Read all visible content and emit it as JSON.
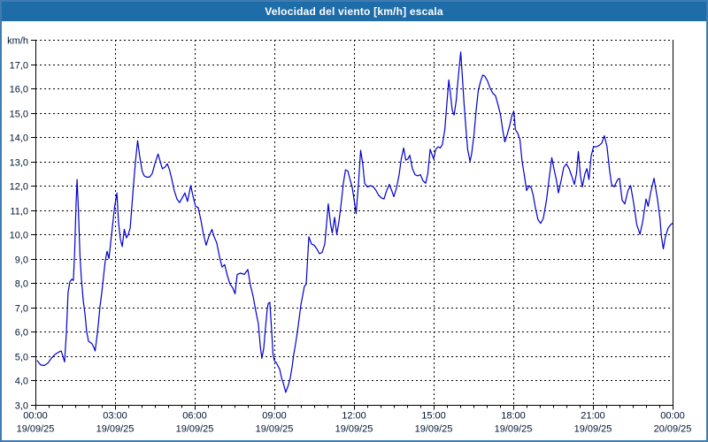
{
  "window": {
    "title": "Velocidad del viento [km/h] escala"
  },
  "colors": {
    "titlebar_bg": "#1E6CA8",
    "titlebar_text": "#FFFFFF",
    "window_border": "#3E7CB1",
    "plot_bg": "#FFFFFF",
    "grid": "#000000",
    "axis_text": "#001433",
    "line": "#0000CC"
  },
  "chart_data": {
    "type": "line",
    "title": "Velocidad del viento [km/h] escala",
    "unit_label": "km/h",
    "xlabel": "",
    "ylabel": "km/h",
    "ylim": [
      3,
      18
    ],
    "y_tick_step": 1,
    "y_tick_labels": [
      "3,0",
      "4,0",
      "5,0",
      "6,0",
      "7,0",
      "8,0",
      "9,0",
      "10,0",
      "11,0",
      "12,0",
      "13,0",
      "14,0",
      "15,0",
      "16,0",
      "17,0"
    ],
    "x_hours_range": [
      0,
      24
    ],
    "x_minor_tick_hours": 0.5,
    "x_major_ticks": [
      {
        "hour": 0,
        "time": "00:00",
        "date": "19/09/25"
      },
      {
        "hour": 3,
        "time": "03:00",
        "date": "19/09/25"
      },
      {
        "hour": 6,
        "time": "06:00",
        "date": "19/09/25"
      },
      {
        "hour": 9,
        "time": "09:00",
        "date": "19/09/25"
      },
      {
        "hour": 12,
        "time": "12:00",
        "date": "19/09/25"
      },
      {
        "hour": 15,
        "time": "15:00",
        "date": "19/09/25"
      },
      {
        "hour": 18,
        "time": "18:00",
        "date": "19/09/25"
      },
      {
        "hour": 21,
        "time": "21:00",
        "date": "19/09/25"
      },
      {
        "hour": 24,
        "time": "00:00",
        "date": "20/09/25"
      }
    ],
    "grid": "dashed",
    "legend": "none",
    "line_color": "#0000CC",
    "grid_color": "#000000",
    "series": [
      {
        "name": "Velocidad del viento",
        "points": [
          [
            0.07,
            4.8
          ],
          [
            0.2,
            4.62
          ],
          [
            0.33,
            4.6
          ],
          [
            0.47,
            4.7
          ],
          [
            0.6,
            4.9
          ],
          [
            0.73,
            5.05
          ],
          [
            0.87,
            5.15
          ],
          [
            0.97,
            5.2
          ],
          [
            1.03,
            5.0
          ],
          [
            1.1,
            4.75
          ],
          [
            1.17,
            6.0
          ],
          [
            1.23,
            7.6
          ],
          [
            1.3,
            8.05
          ],
          [
            1.37,
            8.15
          ],
          [
            1.43,
            8.1
          ],
          [
            1.48,
            9.3
          ],
          [
            1.53,
            11.2
          ],
          [
            1.57,
            12.25
          ],
          [
            1.62,
            11.0
          ],
          [
            1.68,
            9.1
          ],
          [
            1.73,
            8.2
          ],
          [
            1.8,
            7.3
          ],
          [
            1.87,
            6.7
          ],
          [
            1.93,
            6.0
          ],
          [
            2.0,
            5.6
          ],
          [
            2.07,
            5.55
          ],
          [
            2.13,
            5.5
          ],
          [
            2.2,
            5.35
          ],
          [
            2.25,
            5.2
          ],
          [
            2.32,
            5.8
          ],
          [
            2.38,
            6.4
          ],
          [
            2.43,
            7.0
          ],
          [
            2.5,
            7.6
          ],
          [
            2.57,
            8.3
          ],
          [
            2.63,
            8.9
          ],
          [
            2.7,
            9.3
          ],
          [
            2.77,
            9.0
          ],
          [
            2.83,
            9.6
          ],
          [
            2.9,
            10.3
          ],
          [
            2.98,
            11.1
          ],
          [
            3.07,
            11.7
          ],
          [
            3.13,
            10.5
          ],
          [
            3.2,
            9.8
          ],
          [
            3.27,
            9.5
          ],
          [
            3.35,
            10.2
          ],
          [
            3.43,
            9.85
          ],
          [
            3.5,
            10.0
          ],
          [
            3.57,
            10.25
          ],
          [
            3.63,
            11.1
          ],
          [
            3.7,
            12.1
          ],
          [
            3.77,
            13.0
          ],
          [
            3.85,
            13.85
          ],
          [
            3.93,
            13.2
          ],
          [
            4.02,
            12.6
          ],
          [
            4.1,
            12.4
          ],
          [
            4.2,
            12.35
          ],
          [
            4.3,
            12.35
          ],
          [
            4.4,
            12.5
          ],
          [
            4.5,
            12.9
          ],
          [
            4.62,
            13.3
          ],
          [
            4.7,
            13.0
          ],
          [
            4.78,
            12.7
          ],
          [
            4.87,
            12.75
          ],
          [
            4.97,
            12.9
          ],
          [
            5.05,
            12.65
          ],
          [
            5.13,
            12.3
          ],
          [
            5.23,
            11.8
          ],
          [
            5.33,
            11.45
          ],
          [
            5.43,
            11.3
          ],
          [
            5.53,
            11.5
          ],
          [
            5.63,
            11.7
          ],
          [
            5.73,
            11.35
          ],
          [
            5.85,
            12.0
          ],
          [
            5.93,
            11.6
          ],
          [
            6.03,
            11.15
          ],
          [
            6.13,
            11.1
          ],
          [
            6.23,
            10.6
          ],
          [
            6.33,
            10.0
          ],
          [
            6.43,
            9.55
          ],
          [
            6.53,
            9.9
          ],
          [
            6.65,
            10.2
          ],
          [
            6.73,
            9.9
          ],
          [
            6.83,
            9.65
          ],
          [
            6.93,
            9.1
          ],
          [
            7.03,
            8.65
          ],
          [
            7.13,
            8.75
          ],
          [
            7.23,
            8.3
          ],
          [
            7.33,
            7.95
          ],
          [
            7.43,
            7.8
          ],
          [
            7.52,
            7.55
          ],
          [
            7.6,
            8.35
          ],
          [
            7.73,
            8.4
          ],
          [
            7.87,
            8.35
          ],
          [
            8.0,
            8.55
          ],
          [
            8.1,
            7.9
          ],
          [
            8.2,
            7.45
          ],
          [
            8.3,
            6.85
          ],
          [
            8.4,
            6.3
          ],
          [
            8.47,
            5.4
          ],
          [
            8.53,
            4.9
          ],
          [
            8.6,
            5.3
          ],
          [
            8.67,
            6.2
          ],
          [
            8.73,
            6.9
          ],
          [
            8.77,
            7.15
          ],
          [
            8.83,
            7.2
          ],
          [
            8.9,
            6.0
          ],
          [
            8.95,
            5.05
          ],
          [
            9.0,
            4.8
          ],
          [
            9.07,
            4.72
          ],
          [
            9.13,
            4.6
          ],
          [
            9.2,
            4.45
          ],
          [
            9.27,
            4.1
          ],
          [
            9.33,
            3.9
          ],
          [
            9.43,
            3.5
          ],
          [
            9.53,
            3.8
          ],
          [
            9.6,
            4.1
          ],
          [
            9.67,
            4.55
          ],
          [
            9.73,
            5.05
          ],
          [
            9.8,
            5.5
          ],
          [
            9.87,
            6.0
          ],
          [
            9.93,
            6.5
          ],
          [
            10.0,
            7.1
          ],
          [
            10.07,
            7.5
          ],
          [
            10.13,
            7.85
          ],
          [
            10.2,
            7.95
          ],
          [
            10.3,
            9.9
          ],
          [
            10.4,
            9.6
          ],
          [
            10.5,
            9.55
          ],
          [
            10.6,
            9.4
          ],
          [
            10.7,
            9.2
          ],
          [
            10.8,
            9.25
          ],
          [
            10.9,
            9.6
          ],
          [
            10.98,
            10.6
          ],
          [
            11.03,
            11.25
          ],
          [
            11.12,
            10.4
          ],
          [
            11.18,
            10.05
          ],
          [
            11.27,
            10.7
          ],
          [
            11.35,
            10.0
          ],
          [
            11.43,
            10.5
          ],
          [
            11.52,
            11.3
          ],
          [
            11.6,
            12.1
          ],
          [
            11.68,
            12.65
          ],
          [
            11.77,
            12.6
          ],
          [
            11.85,
            12.25
          ],
          [
            11.93,
            11.95
          ],
          [
            12.02,
            11.3
          ],
          [
            12.08,
            10.85
          ],
          [
            12.17,
            12.1
          ],
          [
            12.25,
            13.45
          ],
          [
            12.33,
            12.9
          ],
          [
            12.4,
            12.1
          ],
          [
            12.5,
            11.95
          ],
          [
            12.63,
            12.0
          ],
          [
            12.73,
            11.95
          ],
          [
            12.83,
            11.8
          ],
          [
            12.93,
            11.6
          ],
          [
            13.03,
            11.5
          ],
          [
            13.13,
            11.45
          ],
          [
            13.23,
            11.8
          ],
          [
            13.33,
            12.05
          ],
          [
            13.42,
            11.8
          ],
          [
            13.5,
            11.55
          ],
          [
            13.6,
            11.9
          ],
          [
            13.7,
            12.45
          ],
          [
            13.78,
            13.1
          ],
          [
            13.87,
            13.55
          ],
          [
            13.95,
            13.05
          ],
          [
            14.03,
            13.1
          ],
          [
            14.1,
            13.25
          ],
          [
            14.2,
            12.7
          ],
          [
            14.3,
            12.45
          ],
          [
            14.4,
            12.4
          ],
          [
            14.5,
            12.45
          ],
          [
            14.6,
            12.2
          ],
          [
            14.7,
            12.1
          ],
          [
            14.78,
            12.5
          ],
          [
            14.87,
            13.5
          ],
          [
            14.93,
            13.3
          ],
          [
            15.0,
            13.1
          ],
          [
            15.08,
            13.5
          ],
          [
            15.17,
            13.6
          ],
          [
            15.25,
            13.55
          ],
          [
            15.33,
            13.7
          ],
          [
            15.42,
            14.3
          ],
          [
            15.5,
            15.4
          ],
          [
            15.57,
            16.35
          ],
          [
            15.63,
            15.8
          ],
          [
            15.7,
            15.1
          ],
          [
            15.77,
            14.9
          ],
          [
            15.85,
            15.5
          ],
          [
            15.93,
            16.5
          ],
          [
            16.02,
            17.5
          ],
          [
            16.08,
            16.5
          ],
          [
            16.15,
            15.3
          ],
          [
            16.22,
            14.3
          ],
          [
            16.28,
            13.5
          ],
          [
            16.37,
            13.0
          ],
          [
            16.43,
            13.3
          ],
          [
            16.52,
            14.1
          ],
          [
            16.6,
            15.1
          ],
          [
            16.68,
            15.9
          ],
          [
            16.77,
            16.3
          ],
          [
            16.85,
            16.55
          ],
          [
            16.93,
            16.5
          ],
          [
            17.03,
            16.3
          ],
          [
            17.13,
            16.0
          ],
          [
            17.23,
            15.8
          ],
          [
            17.33,
            15.7
          ],
          [
            17.43,
            15.3
          ],
          [
            17.52,
            14.9
          ],
          [
            17.6,
            14.3
          ],
          [
            17.68,
            13.8
          ],
          [
            17.77,
            14.1
          ],
          [
            17.87,
            14.5
          ],
          [
            17.95,
            14.9
          ],
          [
            18.02,
            15.05
          ],
          [
            18.08,
            14.3
          ],
          [
            18.17,
            14.15
          ],
          [
            18.25,
            13.9
          ],
          [
            18.33,
            13.0
          ],
          [
            18.42,
            12.4
          ],
          [
            18.5,
            11.8
          ],
          [
            18.6,
            12.0
          ],
          [
            18.68,
            11.9
          ],
          [
            18.75,
            11.6
          ],
          [
            18.83,
            11.1
          ],
          [
            18.93,
            10.6
          ],
          [
            19.03,
            10.45
          ],
          [
            19.13,
            10.65
          ],
          [
            19.25,
            11.4
          ],
          [
            19.35,
            12.3
          ],
          [
            19.45,
            13.15
          ],
          [
            19.53,
            12.7
          ],
          [
            19.62,
            12.25
          ],
          [
            19.7,
            11.7
          ],
          [
            19.8,
            12.2
          ],
          [
            19.9,
            12.75
          ],
          [
            20.0,
            12.9
          ],
          [
            20.1,
            12.7
          ],
          [
            20.2,
            12.4
          ],
          [
            20.3,
            12.05
          ],
          [
            20.38,
            12.5
          ],
          [
            20.45,
            13.4
          ],
          [
            20.53,
            12.4
          ],
          [
            20.6,
            11.95
          ],
          [
            20.7,
            12.5
          ],
          [
            20.77,
            12.7
          ],
          [
            20.85,
            12.25
          ],
          [
            20.93,
            13.2
          ],
          [
            21.02,
            13.6
          ],
          [
            21.13,
            13.6
          ],
          [
            21.23,
            13.65
          ],
          [
            21.33,
            13.75
          ],
          [
            21.43,
            14.05
          ],
          [
            21.53,
            13.6
          ],
          [
            21.62,
            12.7
          ],
          [
            21.7,
            12.05
          ],
          [
            21.8,
            11.95
          ],
          [
            21.93,
            12.25
          ],
          [
            22.0,
            12.3
          ],
          [
            22.1,
            11.4
          ],
          [
            22.2,
            11.25
          ],
          [
            22.32,
            11.8
          ],
          [
            22.42,
            12.0
          ],
          [
            22.53,
            11.3
          ],
          [
            22.65,
            10.4
          ],
          [
            22.77,
            10.0
          ],
          [
            22.87,
            10.5
          ],
          [
            23.0,
            11.45
          ],
          [
            23.08,
            11.15
          ],
          [
            23.17,
            11.7
          ],
          [
            23.3,
            12.3
          ],
          [
            23.43,
            11.45
          ],
          [
            23.52,
            10.7
          ],
          [
            23.58,
            9.9
          ],
          [
            23.65,
            9.4
          ],
          [
            23.73,
            9.9
          ],
          [
            23.83,
            10.25
          ],
          [
            23.93,
            10.4
          ],
          [
            24.0,
            10.45
          ]
        ]
      }
    ]
  }
}
